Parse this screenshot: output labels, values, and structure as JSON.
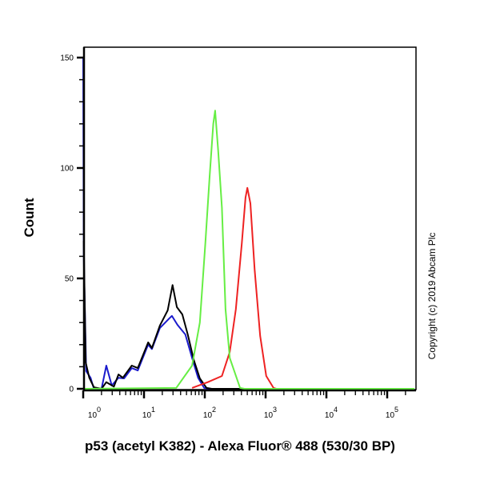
{
  "chart_data": {
    "type": "line",
    "title": "",
    "xlabel": "p53 (acetyl K382) - Alexa Fluor® 488 (530/30 BP)",
    "ylabel": "Count",
    "xscale": "log",
    "xlim": [
      1,
      280000
    ],
    "ylim": [
      0,
      150
    ],
    "grid": false,
    "x_tick_labels": [
      {
        "base": "10",
        "exp": "0",
        "value": 1
      },
      {
        "base": "10",
        "exp": "1",
        "value": 10
      },
      {
        "base": "10",
        "exp": "2",
        "value": 100
      },
      {
        "base": "10",
        "exp": "3",
        "value": 1000
      },
      {
        "base": "10",
        "exp": "4",
        "value": 10000
      },
      {
        "base": "10",
        "exp": "5",
        "value": 100000
      }
    ],
    "y_tick_labels": [
      "0",
      "50",
      "100",
      "150"
    ],
    "y_ticks": [
      0,
      50,
      100,
      150
    ],
    "series": [
      {
        "color": "#1a1acc",
        "points": [
          [
            1.0,
            150
          ],
          [
            1.02,
            60
          ],
          [
            1.12,
            8
          ],
          [
            1.32,
            5
          ],
          [
            1.5,
            0
          ],
          [
            2,
            0
          ],
          [
            2.4,
            10.5
          ],
          [
            2.95,
            1.5
          ],
          [
            3.8,
            5
          ],
          [
            4.7,
            4.7
          ],
          [
            6.3,
            9.4
          ],
          [
            7.9,
            8.3
          ],
          [
            11.7,
            20
          ],
          [
            13.5,
            18
          ],
          [
            18.2,
            27.5
          ],
          [
            26.3,
            32
          ],
          [
            28.8,
            33
          ],
          [
            35.5,
            29
          ],
          [
            47.9,
            24.6
          ],
          [
            61.7,
            14
          ],
          [
            77.6,
            5
          ],
          [
            97.7,
            0.4
          ],
          [
            120,
            0
          ],
          [
            280000,
            0
          ]
        ]
      },
      {
        "color": "#000000",
        "points": [
          [
            1.02,
            67
          ],
          [
            1.1,
            12
          ],
          [
            1.26,
            5
          ],
          [
            1.5,
            0.7
          ],
          [
            2,
            0
          ],
          [
            2.4,
            3
          ],
          [
            3.2,
            1
          ],
          [
            3.8,
            6.5
          ],
          [
            4.5,
            5
          ],
          [
            6.3,
            10.5
          ],
          [
            7.9,
            9.4
          ],
          [
            11.7,
            21
          ],
          [
            13.5,
            18.5
          ],
          [
            18.2,
            28.6
          ],
          [
            24.5,
            35.5
          ],
          [
            29.5,
            47
          ],
          [
            34.7,
            37
          ],
          [
            42.7,
            33.7
          ],
          [
            52.5,
            24.6
          ],
          [
            66,
            13
          ],
          [
            83,
            4.7
          ],
          [
            107,
            0.4
          ],
          [
            130,
            0
          ],
          [
            280000,
            0
          ]
        ]
      },
      {
        "color": "#66ee44",
        "points": [
          [
            1,
            0
          ],
          [
            33.9,
            0.4
          ],
          [
            61.7,
            10.5
          ],
          [
            83,
            30
          ],
          [
            102,
            66
          ],
          [
            120,
            96
          ],
          [
            138,
            120
          ],
          [
            148,
            126
          ],
          [
            166,
            108
          ],
          [
            191,
            82
          ],
          [
            219,
            36
          ],
          [
            257,
            14
          ],
          [
            380,
            0.4
          ],
          [
            450,
            0
          ],
          [
            280000,
            0
          ]
        ]
      },
      {
        "color": "#ee2222",
        "points": [
          [
            61.7,
            0.4
          ],
          [
            112,
            3
          ],
          [
            191,
            5.8
          ],
          [
            257,
            16.7
          ],
          [
            324,
            36
          ],
          [
            407,
            66
          ],
          [
            468,
            86.6
          ],
          [
            501,
            91
          ],
          [
            562,
            84
          ],
          [
            661,
            54
          ],
          [
            813,
            24
          ],
          [
            1023,
            5.8
          ],
          [
            1349,
            0.4
          ],
          [
            1500,
            0
          ]
        ]
      }
    ]
  },
  "copyright": "Copyright (c) 2019 Abcam Plc"
}
